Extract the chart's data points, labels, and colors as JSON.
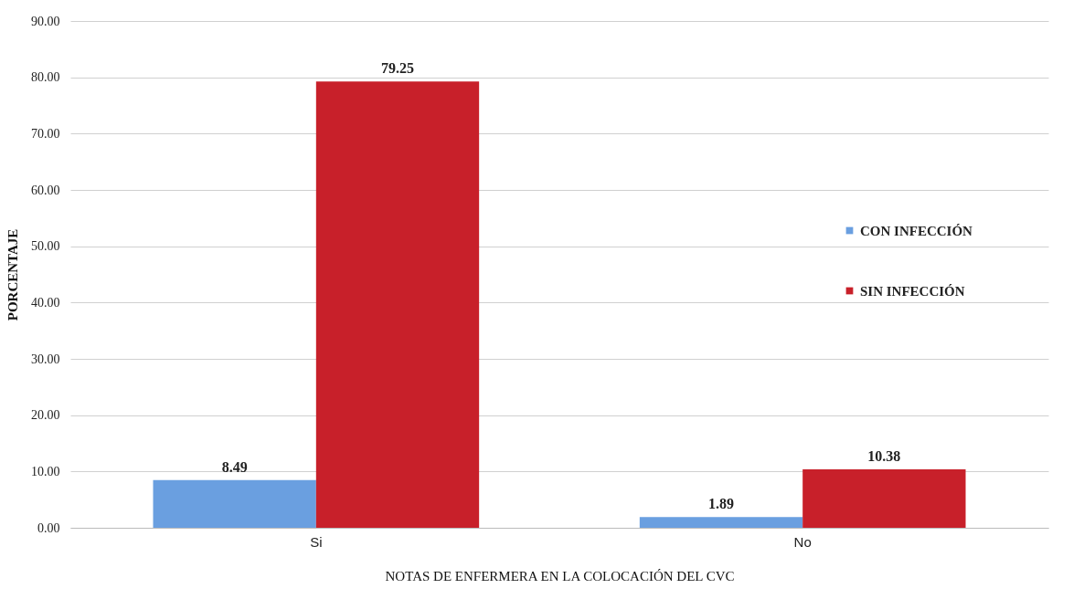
{
  "chart_data": {
    "type": "bar",
    "xlabel": "NOTAS DE ENFERMERA EN LA COLOCACIÓN  DEL CVC",
    "ylabel": "PORCENTAJE",
    "categories": [
      "Si",
      "No"
    ],
    "series": [
      {
        "name": "CON  INFECCIÓN",
        "color": "#6a9fe0",
        "values": [
          8.49,
          1.89
        ]
      },
      {
        "name": "SIN INFECCIÓN",
        "color": "#c8202a",
        "values": [
          79.25,
          10.38
        ]
      }
    ],
    "ylim": [
      0,
      90
    ],
    "yticks": [
      {
        "value": 0,
        "label": "0.00"
      },
      {
        "value": 10,
        "label": "10.00"
      },
      {
        "value": 20,
        "label": "20.00"
      },
      {
        "value": 30,
        "label": "30.00"
      },
      {
        "value": 40,
        "label": "40.00"
      },
      {
        "value": 50,
        "label": "50.00"
      },
      {
        "value": 60,
        "label": "60.00"
      },
      {
        "value": 70,
        "label": "70.00"
      },
      {
        "value": 80,
        "label": "80.00"
      },
      {
        "value": 90,
        "label": "90.00"
      }
    ],
    "grid": "y",
    "legend": "right",
    "data_labels": true
  }
}
